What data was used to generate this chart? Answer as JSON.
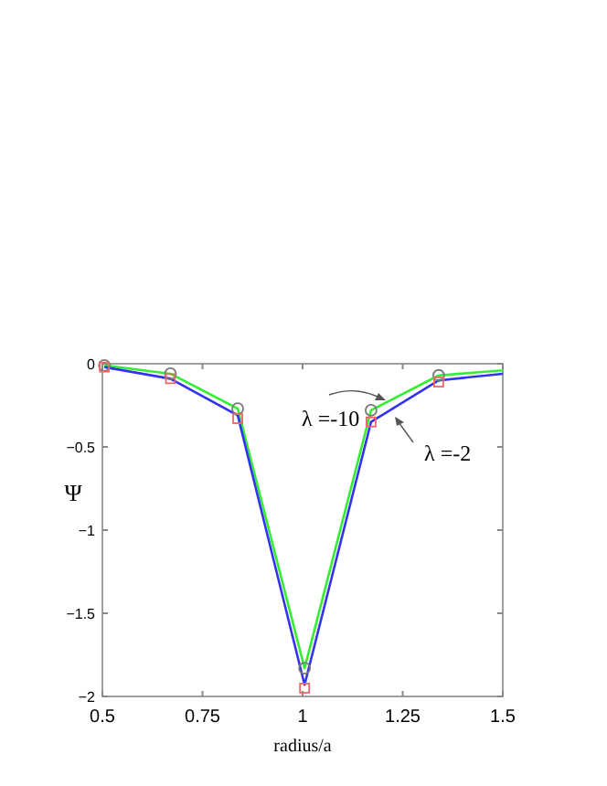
{
  "chart_data": {
    "type": "line",
    "xlabel": "radius/a",
    "ylabel": "Ψ",
    "xlim": [
      0.5,
      1.5
    ],
    "ylim": [
      -2,
      0
    ],
    "xticks": [
      0.5,
      0.75,
      1,
      1.25,
      1.5
    ],
    "yticks": [
      0,
      -0.5,
      -1,
      -1.5,
      -2
    ],
    "grid": false,
    "series": [
      {
        "name": "λ =-10",
        "color": "#33ee33",
        "x": [
          0.505,
          0.67,
          0.838,
          1.005,
          1.171,
          1.34,
          1.5
        ],
        "values": [
          -0.01,
          -0.06,
          -0.27,
          -1.83,
          -0.28,
          -0.07,
          -0.04
        ]
      },
      {
        "name": "λ =-2",
        "color": "#3333ee",
        "x": [
          0.505,
          0.67,
          0.838,
          1.005,
          1.171,
          1.34,
          1.5
        ],
        "values": [
          -0.02,
          -0.09,
          -0.31,
          -1.93,
          -0.35,
          -0.1,
          -0.06
        ]
      },
      {
        "type": "scatter",
        "marker": "circle",
        "color": "#777777",
        "x": [
          0.505,
          0.67,
          0.838,
          1.005,
          1.171,
          1.34
        ],
        "values": [
          -0.01,
          -0.06,
          -0.27,
          -1.83,
          -0.28,
          -0.07
        ]
      },
      {
        "type": "scatter",
        "marker": "square",
        "color": "#ee6666",
        "x": [
          0.505,
          0.67,
          0.838,
          1.005,
          1.171,
          1.34
        ],
        "values": [
          -0.02,
          -0.09,
          -0.33,
          -1.95,
          -0.35,
          -0.11
        ]
      }
    ]
  }
}
